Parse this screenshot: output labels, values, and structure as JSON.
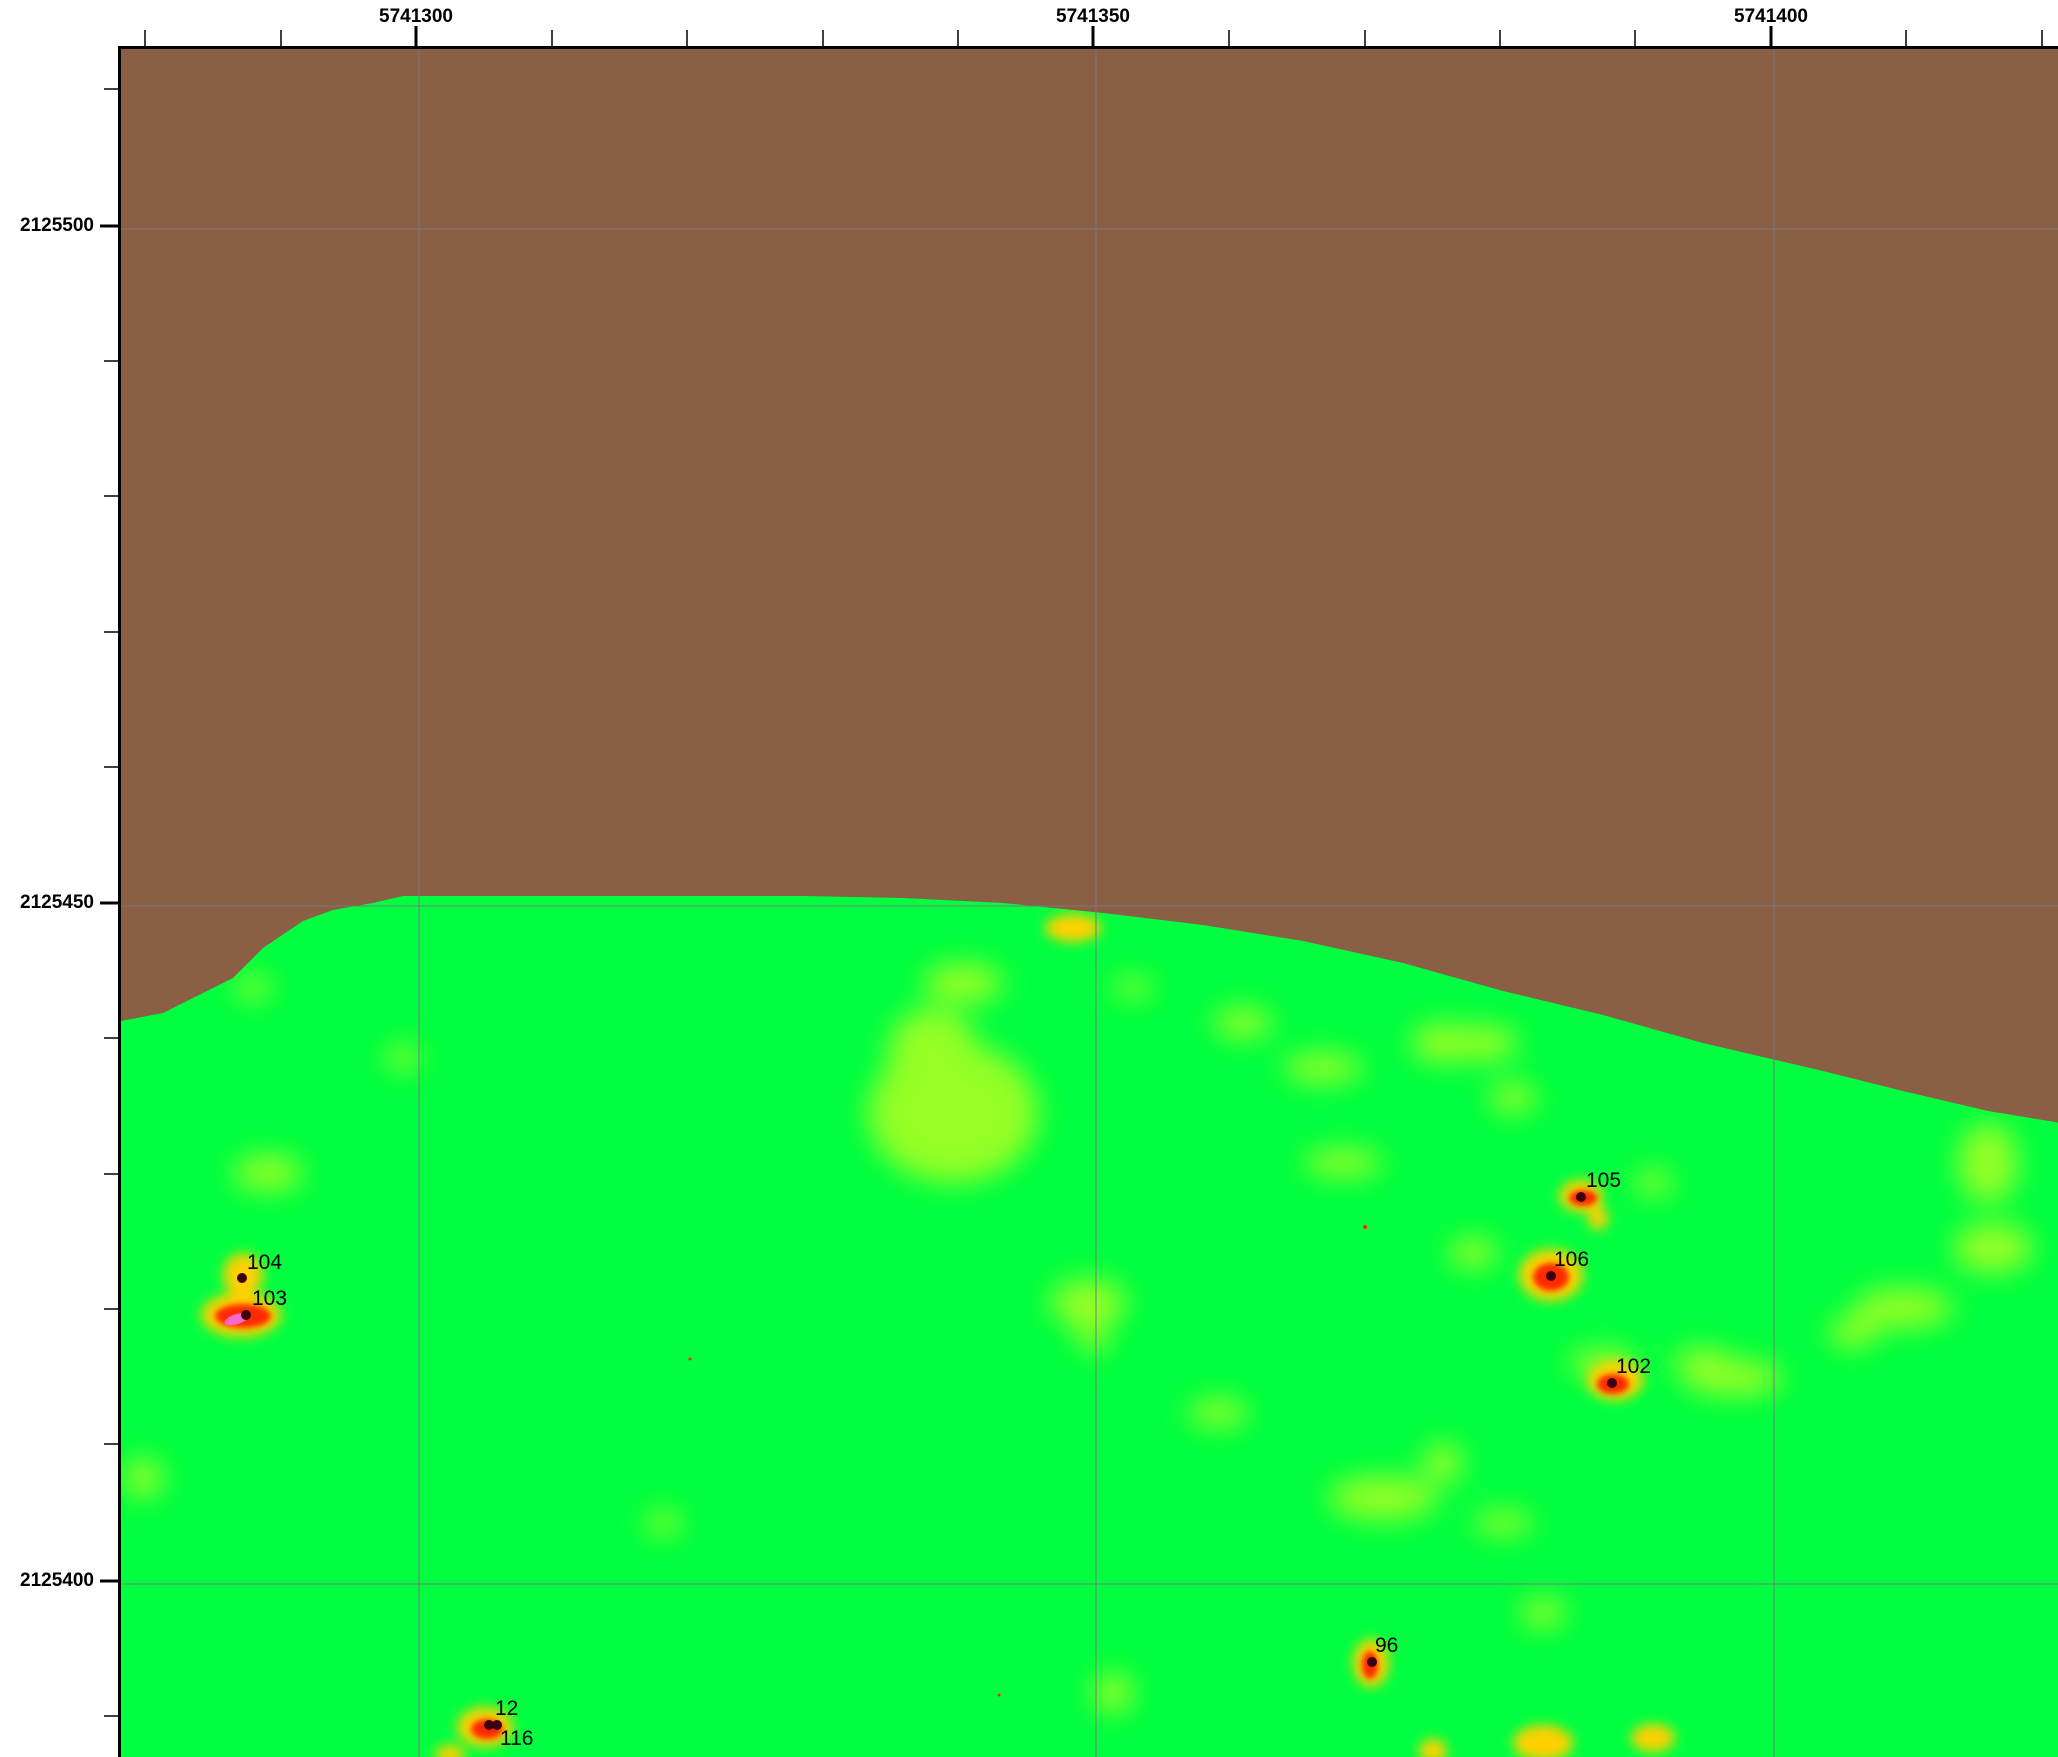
{
  "axes": {
    "x_ticks": [
      {
        "value": 5741300,
        "label": "5741300"
      },
      {
        "value": 5741350,
        "label": "5741350"
      },
      {
        "value": 5741400,
        "label": "5741400"
      }
    ],
    "y_ticks": [
      {
        "value": 2125500,
        "label": "2125500"
      },
      {
        "value": 2125450,
        "label": "2125450"
      },
      {
        "value": 2125400,
        "label": "2125400"
      }
    ]
  },
  "colors": {
    "no_data_fill": "#8b5e46",
    "low_value_fill": "#00ff41",
    "medium_value": "#c8ff1e",
    "high_value": "#ffd000",
    "peak_value": "#ff2a00",
    "extreme_value": "#ff66cc",
    "grid_line": "#7a7a7a",
    "point_marker": "#3a0010"
  },
  "points": [
    {
      "id": "105",
      "label": "105"
    },
    {
      "id": "104",
      "label": "104"
    },
    {
      "id": "106",
      "label": "106"
    },
    {
      "id": "103",
      "label": "103"
    },
    {
      "id": "102",
      "label": "102"
    },
    {
      "id": "96",
      "label": "96"
    },
    {
      "id": "12",
      "label": "12"
    },
    {
      "id": "116",
      "label": "116"
    }
  ]
}
